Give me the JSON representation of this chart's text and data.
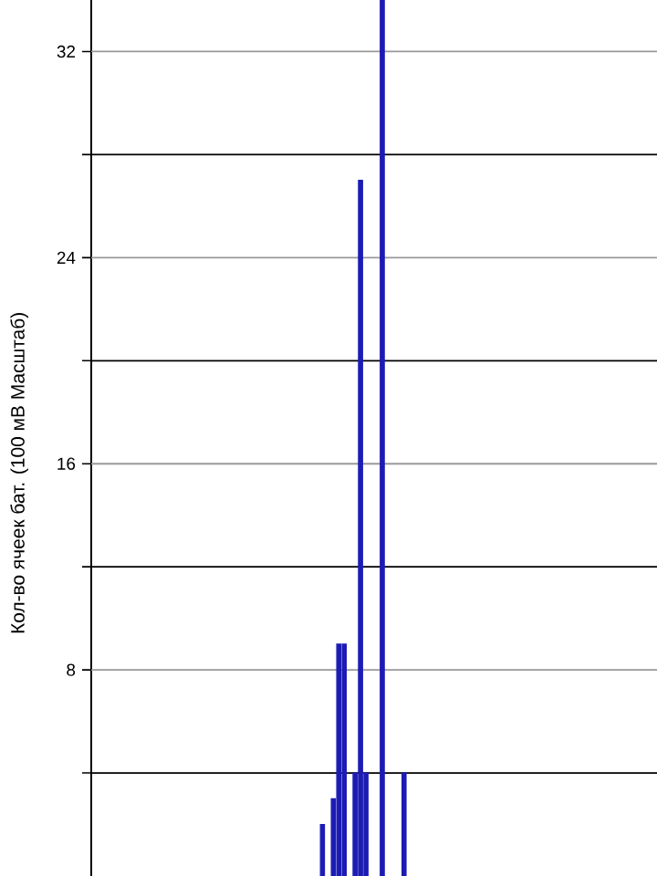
{
  "chart_data": {
    "type": "bar",
    "ylabel": "Кол-во ячеек бат. (100 мВ Масштаб)",
    "categories": [
      null,
      null,
      null,
      null,
      null,
      null,
      null,
      null,
      null,
      null,
      null,
      null,
      null,
      null,
      null,
      null,
      null,
      null,
      null,
      null,
      null,
      null,
      null,
      null,
      null,
      null,
      null,
      null,
      null,
      null,
      null,
      null,
      null,
      null,
      null,
      null,
      null,
      null,
      null,
      null,
      null,
      null,
      null,
      null,
      null,
      null,
      null,
      null,
      null,
      null,
      null,
      null,
      null,
      null,
      null,
      null,
      null,
      null,
      null,
      null,
      null,
      null,
      null,
      null,
      null,
      null,
      null,
      null,
      null,
      null,
      null,
      null,
      null,
      null,
      null,
      null,
      null,
      null,
      null,
      null,
      null,
      null,
      null,
      null,
      null,
      null,
      null,
      null,
      null,
      null,
      null,
      null,
      null,
      null,
      null,
      null,
      null,
      null,
      null,
      null,
      null,
      null,
      null,
      null
    ],
    "values": [
      null,
      null,
      null,
      null,
      null,
      null,
      null,
      null,
      null,
      null,
      null,
      null,
      null,
      null,
      null,
      null,
      null,
      null,
      null,
      null,
      null,
      null,
      null,
      null,
      null,
      null,
      null,
      null,
      null,
      null,
      null,
      null,
      null,
      null,
      null,
      null,
      null,
      null,
      null,
      null,
      null,
      null,
      2,
      null,
      3,
      9,
      9,
      null,
      4,
      27,
      4,
      null,
      null,
      34,
      null,
      null,
      null,
      4,
      null,
      null,
      null,
      null,
      null,
      null,
      null,
      null,
      null,
      null,
      null,
      null,
      null,
      null,
      null,
      null,
      null,
      null,
      null,
      null,
      null,
      null,
      null,
      null,
      null,
      null,
      null,
      null,
      null,
      null,
      null,
      null,
      null,
      null,
      null,
      null,
      null,
      null,
      null,
      null,
      null,
      null,
      null,
      null,
      null,
      null
    ],
    "color": "#1c1cb4",
    "ylim": [
      0,
      34
    ],
    "yticks": [
      {
        "value": 4,
        "label": null
      },
      8,
      {
        "value": 12,
        "label": null
      },
      16,
      {
        "value": 20,
        "label": null
      },
      24,
      {
        "value": 28,
        "label": null
      },
      32
    ],
    "grid": true,
    "tick_labels": "y"
  }
}
